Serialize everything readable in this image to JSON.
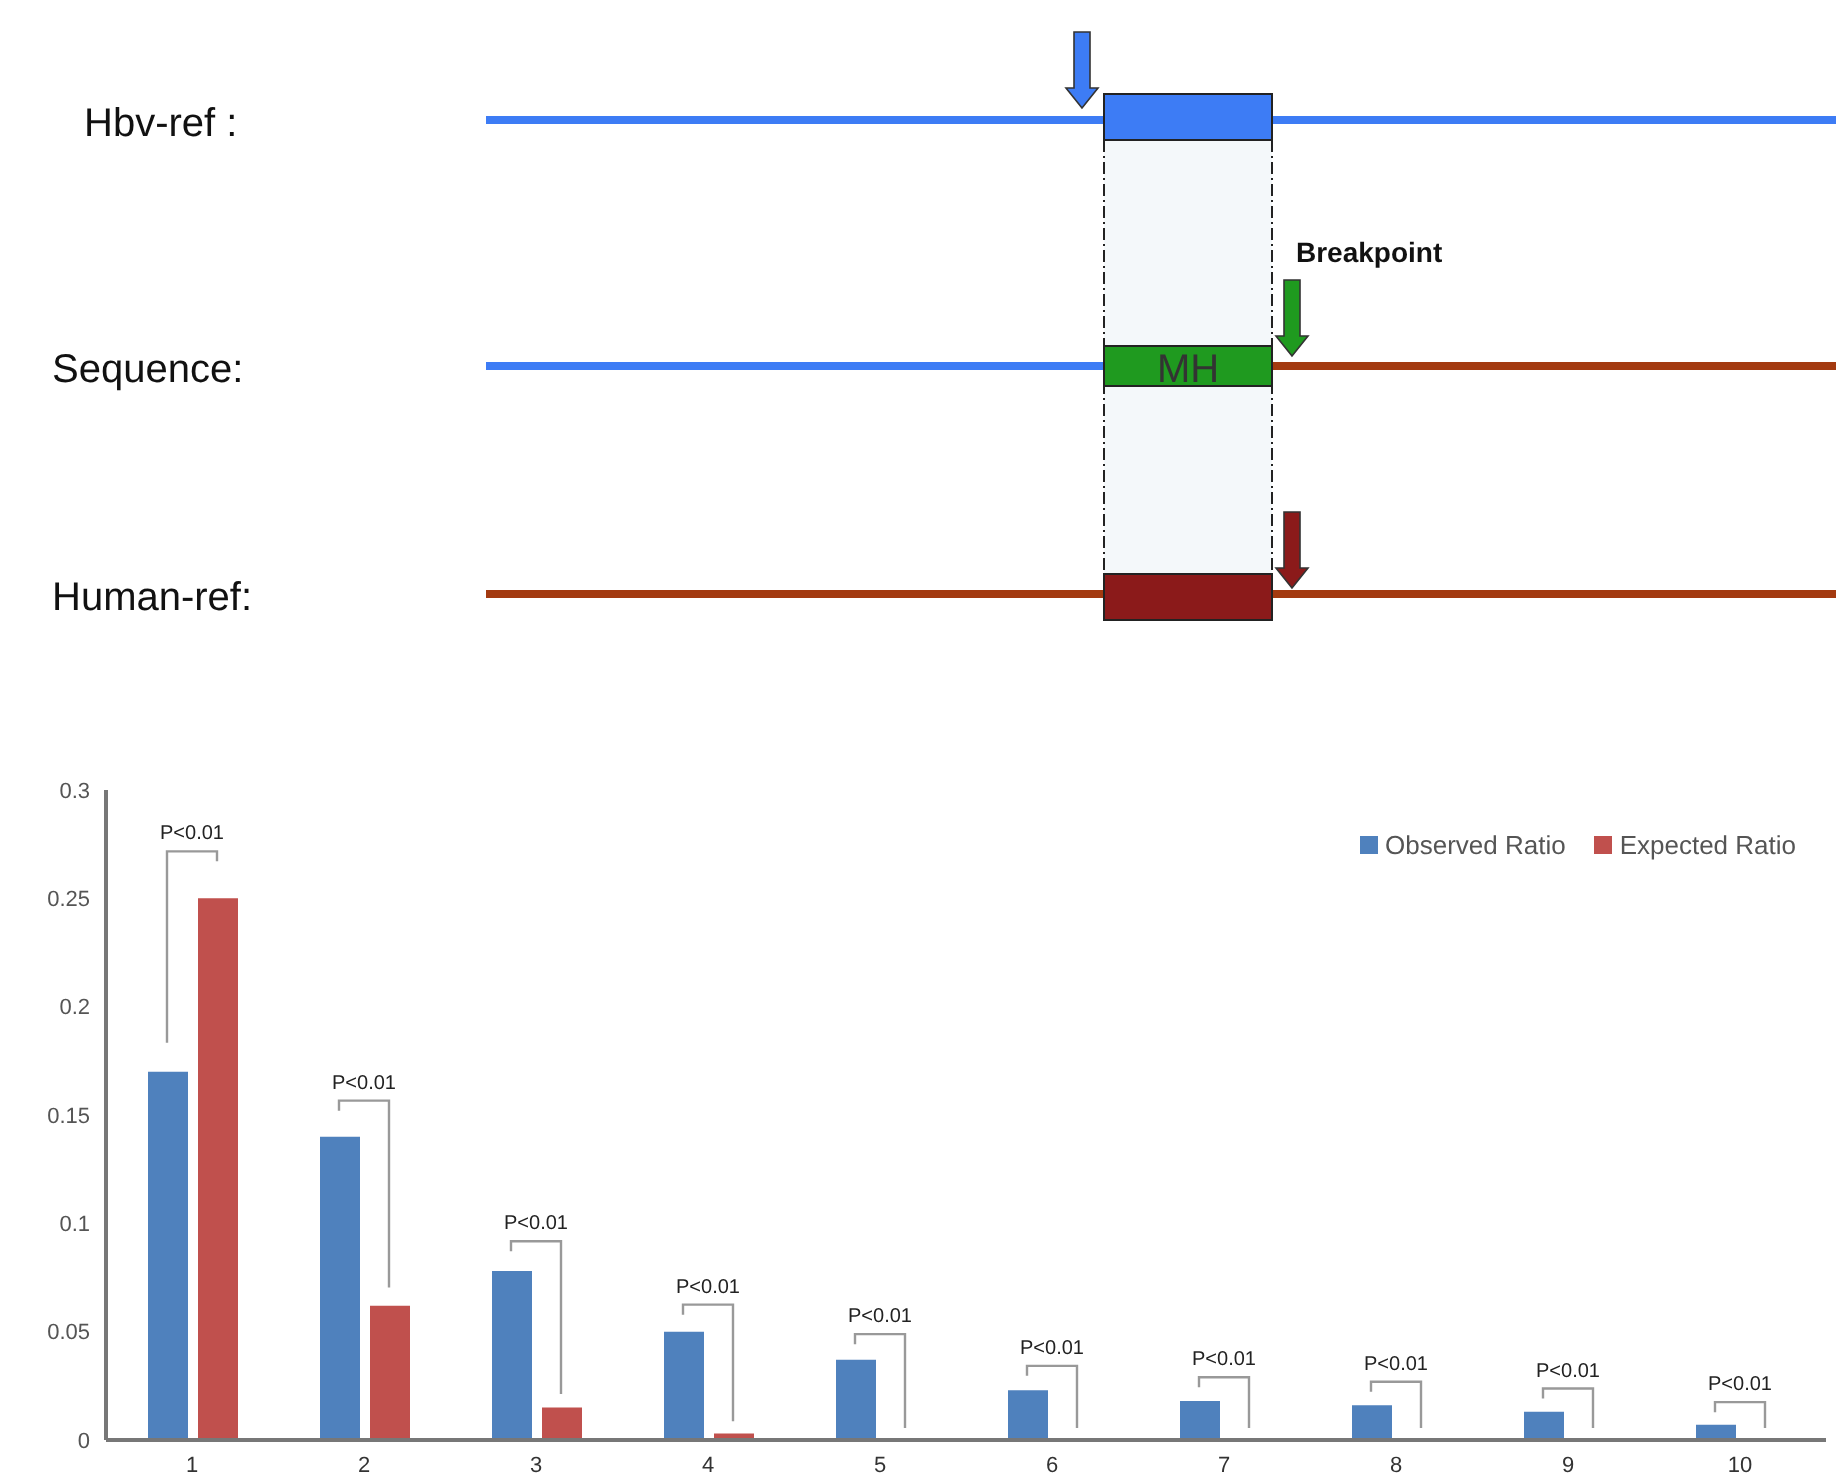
{
  "chart_data": [
    {
      "type": "other",
      "annotations": [
        "Hbv-ref :",
        "Sequence:",
        "Human-ref:",
        "MH",
        "Breakpoint"
      ]
    },
    {
      "type": "bar",
      "categories": [
        "1",
        "2",
        "3",
        "4",
        "5",
        "6",
        "7",
        "8",
        "9",
        "10"
      ],
      "series": [
        {
          "name": "Observed Ratio",
          "color": "#4f81bd",
          "values": [
            0.17,
            0.14,
            0.078,
            0.05,
            0.037,
            0.023,
            0.018,
            0.016,
            0.013,
            0.007
          ]
        },
        {
          "name": "Expected Ratio",
          "color": "#c0504d",
          "values": [
            0.25,
            0.062,
            0.015,
            0.003,
            0,
            0,
            0,
            0,
            0,
            0
          ]
        }
      ],
      "ylim": [
        0,
        0.3
      ],
      "yticks": [
        0,
        0.05,
        0.1,
        0.15,
        0.2,
        0.25,
        0.3
      ],
      "grid": false,
      "legend": "top right",
      "annotations": [
        "P<0.01",
        "P<0.01",
        "P<0.01",
        "P<0.01",
        "P<0.01",
        "P<0.01",
        "P<0.01",
        "P<0.01",
        "P<0.01",
        "P<0.01"
      ]
    }
  ]
}
